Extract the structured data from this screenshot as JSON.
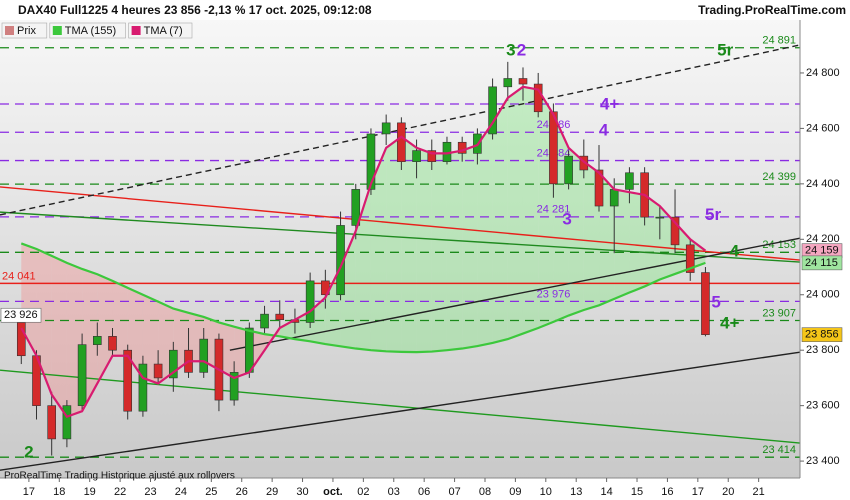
{
  "chart_data": {
    "type": "candlestick",
    "title": "DAX40 Full1225 4 heures 23 856 -2,13 % 17 oct. 2025, 09:12:08",
    "source": "Trading.ProRealTime.com",
    "footnote": "ProRealTime Trading  Historique ajusté aux rollovers",
    "xlim": [
      -0.95,
      25.36
    ],
    "ylim": [
      23339,
      24991
    ],
    "xticks": [
      {
        "value": 0,
        "label": "17"
      },
      {
        "value": 1,
        "label": "18"
      },
      {
        "value": 2,
        "label": "19"
      },
      {
        "value": 3,
        "label": "22"
      },
      {
        "value": 4,
        "label": "23"
      },
      {
        "value": 5,
        "label": "24"
      },
      {
        "value": 6,
        "label": "25"
      },
      {
        "value": 7,
        "label": "26"
      },
      {
        "value": 8,
        "label": "29"
      },
      {
        "value": 9,
        "label": "30"
      },
      {
        "value": 10,
        "label": "oct."
      },
      {
        "value": 11,
        "label": "02"
      },
      {
        "value": 12,
        "label": "03"
      },
      {
        "value": 13,
        "label": "06"
      },
      {
        "value": 14,
        "label": "07"
      },
      {
        "value": 15,
        "label": "08"
      },
      {
        "value": 16,
        "label": "09"
      },
      {
        "value": 17,
        "label": "10"
      },
      {
        "value": 18,
        "label": "13"
      },
      {
        "value": 19,
        "label": "14"
      },
      {
        "value": 20,
        "label": "15"
      },
      {
        "value": 21,
        "label": "16"
      },
      {
        "value": 22,
        "label": "17"
      },
      {
        "value": 23,
        "label": "20"
      },
      {
        "value": 24,
        "label": "21"
      }
    ],
    "yticks": [
      {
        "value": 23400,
        "label": "23 400"
      },
      {
        "value": 23600,
        "label": "23 600"
      },
      {
        "value": 23800,
        "label": "23 800"
      },
      {
        "value": 24000,
        "label": "24 000"
      },
      {
        "value": 24200,
        "label": "24 200"
      },
      {
        "value": 24400,
        "label": "24 400"
      },
      {
        "value": 24600,
        "label": "24 600"
      },
      {
        "value": 24800,
        "label": "24 800"
      }
    ],
    "candles": {
      "name": "Prix",
      "up_color": "#22a022",
      "down_color": "#d42a2a",
      "x": [
        -0.25,
        0.25,
        0.75,
        1.25,
        1.75,
        2.25,
        2.75,
        3.25,
        3.75,
        4.25,
        4.75,
        5.25,
        5.75,
        6.25,
        6.75,
        7.25,
        7.75,
        8.25,
        8.75,
        9.25,
        9.75,
        10.25,
        10.75,
        11.25,
        11.75,
        12.25,
        12.75,
        13.25,
        13.75,
        14.25,
        14.75,
        15.25,
        15.75,
        16.25,
        16.75,
        17.25,
        17.75,
        18.25,
        18.75,
        19.25,
        19.75,
        20.25,
        20.75,
        21.25,
        21.75,
        22.25
      ],
      "open": [
        23900,
        23780,
        23600,
        23480,
        23600,
        23820,
        23850,
        23800,
        23580,
        23750,
        23700,
        23800,
        23720,
        23840,
        23620,
        23720,
        23880,
        23930,
        23910,
        23900,
        24050,
        24000,
        24250,
        24380,
        24580,
        24620,
        24480,
        24520,
        24480,
        24550,
        24510,
        24580,
        24750,
        24780,
        24760,
        24660,
        24400,
        24500,
        24450,
        24320,
        24380,
        24440,
        24280,
        24280,
        24180,
        24080
      ],
      "high": [
        23930,
        23800,
        23650,
        23620,
        23860,
        23900,
        23880,
        23820,
        23780,
        23800,
        23830,
        23880,
        23880,
        23860,
        23760,
        23900,
        23960,
        23980,
        23950,
        24080,
        24090,
        24300,
        24400,
        24600,
        24650,
        24640,
        24560,
        24560,
        24570,
        24570,
        24600,
        24780,
        24840,
        24820,
        24800,
        24690,
        24520,
        24560,
        24540,
        24420,
        24460,
        24460,
        24320,
        24380,
        24200,
        24100
      ],
      "low": [
        23750,
        23550,
        23420,
        23450,
        23580,
        23780,
        23780,
        23550,
        23560,
        23680,
        23650,
        23700,
        23700,
        23580,
        23600,
        23700,
        23860,
        23880,
        23860,
        23880,
        23950,
        23980,
        24200,
        24360,
        24540,
        24450,
        24420,
        24450,
        24470,
        24480,
        24470,
        24560,
        24700,
        24700,
        24640,
        24350,
        24380,
        24420,
        24300,
        24150,
        24330,
        24250,
        24200,
        24150,
        24050,
        23850
      ],
      "close": [
        23780,
        23600,
        23480,
        23600,
        23820,
        23850,
        23800,
        23580,
        23750,
        23700,
        23800,
        23720,
        23840,
        23620,
        23720,
        23880,
        23930,
        23910,
        23900,
        24050,
        24000,
        24250,
        24380,
        24580,
        24620,
        24480,
        24520,
        24480,
        24550,
        24510,
        24580,
        24750,
        24780,
        24760,
        24660,
        24400,
        24500,
        24450,
        24320,
        24380,
        24440,
        24280,
        24280,
        24180,
        24080,
        23856
      ]
    },
    "series": [
      {
        "name": "TMA (155)",
        "color": "#3cc83c",
        "values": [
          24185,
          24165,
          24140,
          24115,
          24093,
          24074,
          24050,
          24025,
          24000,
          23975,
          23950,
          23935,
          23920,
          23900,
          23885,
          23870,
          23858,
          23850,
          23840,
          23832,
          23822,
          23814,
          23806,
          23800,
          23796,
          23794,
          23793,
          23795,
          23800,
          23806,
          23815,
          23826,
          23840,
          23860,
          23880,
          23902,
          23925,
          23945,
          23962,
          23985,
          24008,
          24030,
          24055,
          24075,
          24095,
          24115
        ]
      },
      {
        "name": "TMA (7)",
        "color": "#d81b70",
        "values": [
          23880,
          23780,
          23640,
          23560,
          23580,
          23680,
          23780,
          23780,
          23700,
          23680,
          23720,
          23760,
          23760,
          23730,
          23700,
          23720,
          23800,
          23880,
          23910,
          23940,
          23990,
          24100,
          24230,
          24400,
          24530,
          24570,
          24530,
          24510,
          24510,
          24520,
          24540,
          24620,
          24710,
          24750,
          24740,
          24650,
          24530,
          24480,
          24440,
          24380,
          24370,
          24360,
          24320,
          24260,
          24200,
          24159
        ]
      }
    ],
    "trendlines": [
      {
        "x": [
          -0.95,
          25.36
        ],
        "y": [
          24389,
          24125
        ],
        "color": "#e8201a",
        "dash": false
      },
      {
        "x": [
          -0.95,
          25.36
        ],
        "y": [
          23728,
          23465
        ],
        "color": "#1f9a1f",
        "dash": false
      },
      {
        "x": [
          -0.95,
          25.36
        ],
        "y": [
          24298,
          24118
        ],
        "color": "#1f8a1f",
        "dash": false
      },
      {
        "x": [
          -0.95,
          25.36
        ],
        "y": [
          24288,
          24901
        ],
        "color": "#222222",
        "dash": true
      },
      {
        "x": [
          -0.95,
          25.36
        ],
        "y": [
          23367,
          23793
        ],
        "color": "#222222",
        "dash": false
      },
      {
        "x": [
          6.61,
          25.36
        ],
        "y": [
          23800,
          24204
        ],
        "color": "#222222",
        "dash": false
      }
    ],
    "levels": [
      {
        "value": 24891,
        "label": "24 891",
        "color": "#1a8a1a",
        "dash": true,
        "label_pos": "right"
      },
      {
        "value": 24399,
        "label": "24 399",
        "color": "#1a8a1a",
        "dash": true,
        "label_pos": "right"
      },
      {
        "value": 24153,
        "label": "24 153",
        "color": "#1a8a1a",
        "dash": true,
        "label_pos": "right"
      },
      {
        "value": 23907,
        "label": "23 907",
        "color": "#1a8a1a",
        "dash": true,
        "label_pos": "right"
      },
      {
        "value": 23414,
        "label": "23 414",
        "color": "#1a8a1a",
        "dash": true,
        "label_pos": "right"
      },
      {
        "value": 24688,
        "color": "#8a2be2",
        "dash": true,
        "label_pos": "inner"
      },
      {
        "value": 24586,
        "label": "24 586",
        "color": "#8a2be2",
        "dash": true,
        "label_pos": "inner"
      },
      {
        "value": 24484,
        "label": "24 484",
        "color": "#8a2be2",
        "dash": true,
        "label_pos": "inner"
      },
      {
        "value": 24281,
        "label": "24 281",
        "color": "#8a2be2",
        "dash": true,
        "label_pos": "inner"
      },
      {
        "value": 23976,
        "label": "23 976",
        "color": "#8a2be2",
        "dash": true,
        "label_pos": "inner"
      },
      {
        "value": 24041,
        "label": "24 041",
        "color": "#e8201a",
        "dash": false,
        "label_pos": "left"
      }
    ],
    "price_boxes": [
      {
        "value": 24159,
        "label": "24 159",
        "color": "#f4a6c0",
        "side": "right"
      },
      {
        "value": 24115,
        "label": "24 115",
        "color": "#9fe59f",
        "side": "right"
      },
      {
        "value": 23856,
        "label": "23 856",
        "color": "#f5c518",
        "side": "right"
      },
      {
        "value": 23926,
        "label": "23 926",
        "color": "#ffffff",
        "side": "left"
      }
    ],
    "annotations": [
      {
        "text": "3",
        "x": 15.85,
        "y": 24880,
        "color": "#1a8a1a"
      },
      {
        "text": "2",
        "x": 16.2,
        "y": 24880,
        "color": "#8a2be2"
      },
      {
        "text": "5r",
        "x": 22.9,
        "y": 24880,
        "color": "#1a8a1a"
      },
      {
        "text": "4+",
        "x": 19.1,
        "y": 24685,
        "color": "#8a2be2"
      },
      {
        "text": "4",
        "x": 18.9,
        "y": 24590,
        "color": "#8a2be2"
      },
      {
        "text": "3",
        "x": 17.7,
        "y": 24270,
        "color": "#8a2be2"
      },
      {
        "text": "5r",
        "x": 22.5,
        "y": 24285,
        "color": "#8a2be2"
      },
      {
        "text": "4",
        "x": 23.2,
        "y": 24155,
        "color": "#1a8a1a"
      },
      {
        "text": "5",
        "x": 22.6,
        "y": 23970,
        "color": "#8a2be2"
      },
      {
        "text": "4+",
        "x": 23.05,
        "y": 23895,
        "color": "#1a8a1a"
      },
      {
        "text": "2",
        "x": 0,
        "y": 23430,
        "color": "#1a8a1a"
      }
    ]
  }
}
